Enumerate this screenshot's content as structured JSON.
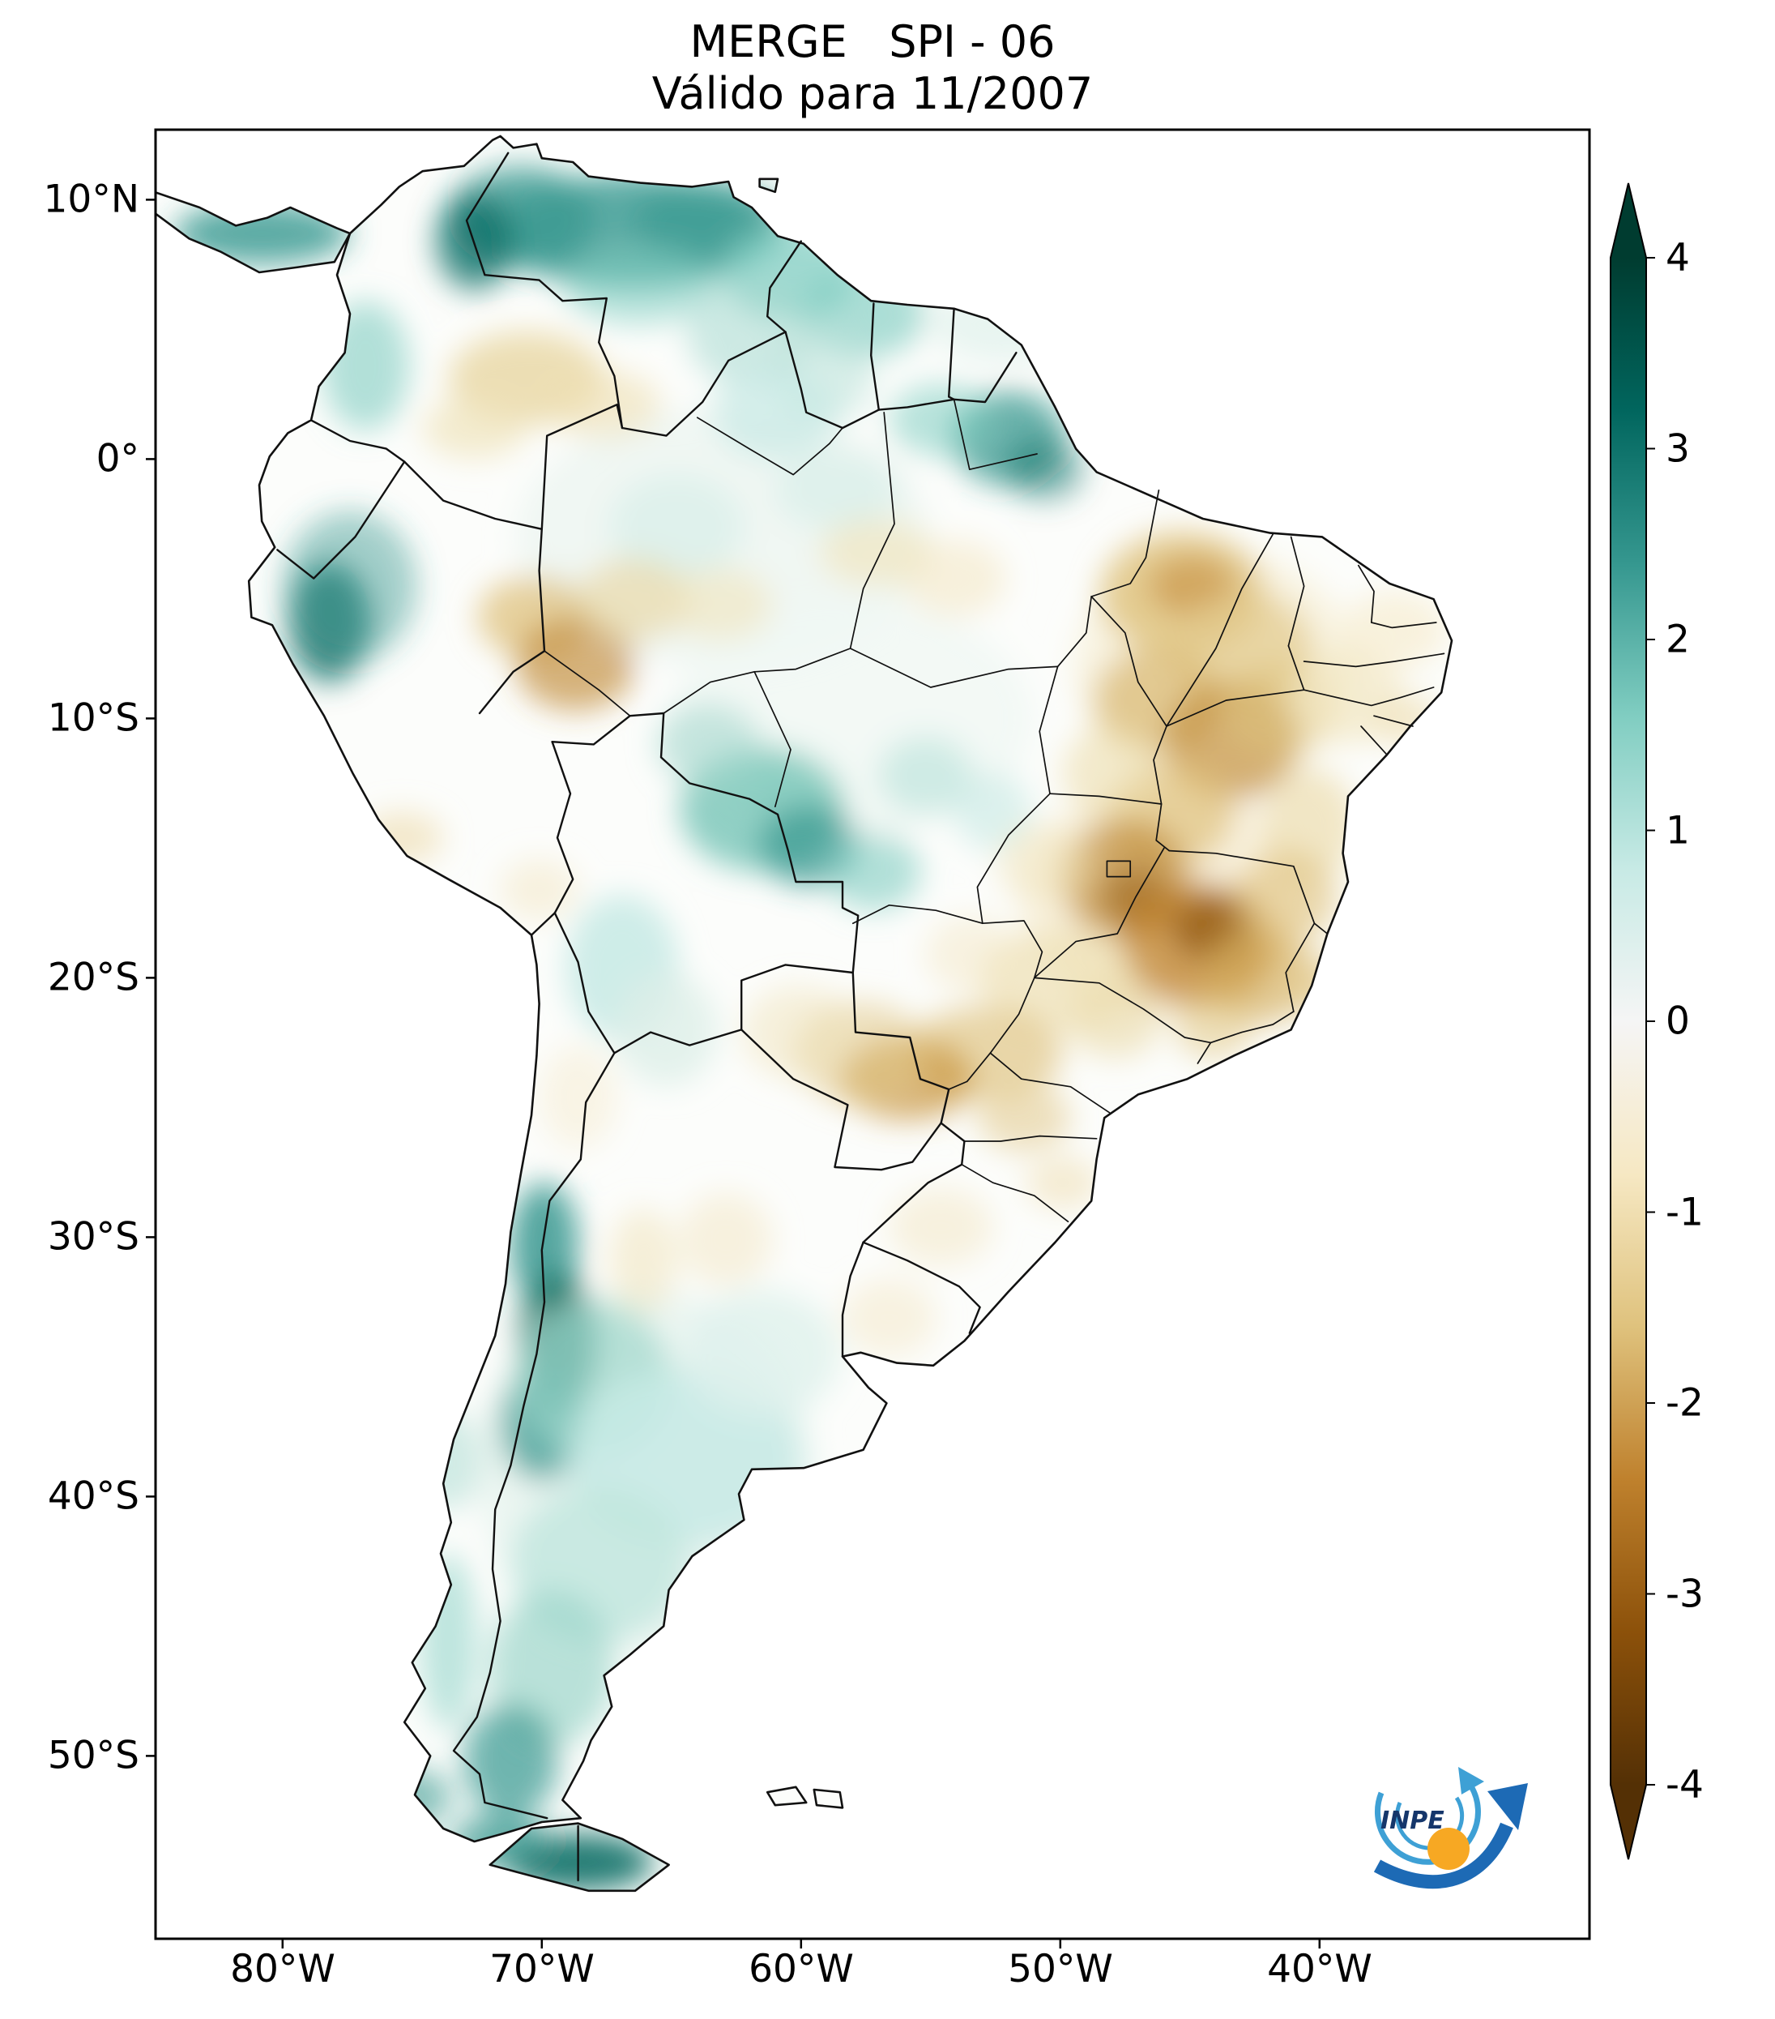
{
  "figure": {
    "title": "MERGE   SPI - 06",
    "subtitle": "Válido para 11/2007"
  },
  "axes": {
    "lat_ticks": [
      "10°N",
      "0°",
      "10°S",
      "20°S",
      "30°S",
      "40°S",
      "50°S"
    ],
    "lon_ticks": [
      "80°W",
      "70°W",
      "60°W",
      "50°W",
      "40°W"
    ]
  },
  "colorbar": {
    "tick_labels": [
      "4",
      "3",
      "2",
      "1",
      "0",
      "-1",
      "-2",
      "-3",
      "-4"
    ],
    "max": 4,
    "min": -4,
    "palette_name": "BrBG",
    "palette_top_to_bottom": [
      "#003c30",
      "#01665e",
      "#35978f",
      "#80cdc1",
      "#c7eae5",
      "#f5f5f5",
      "#f6e8c3",
      "#dfc27d",
      "#bf812d",
      "#8c510a",
      "#543005"
    ]
  },
  "logo": {
    "label": "INPE",
    "colors": {
      "swirl": "#3ea0d5",
      "arrow": "#1d6ab5",
      "dot": "#f7a823",
      "text": "#15366b"
    }
  },
  "chart_data": {
    "type": "heatmap",
    "title": "MERGE   SPI - 06",
    "subtitle": "Válido para 11/2007",
    "product": "MERGE",
    "index": "SPI-06",
    "valid_for": "11/2007",
    "region": "South America",
    "x_ticks": [
      "80°W",
      "70°W",
      "60°W",
      "50°W",
      "40°W"
    ],
    "y_ticks": [
      "10°N",
      "0°",
      "10°S",
      "20°S",
      "30°S",
      "40°S",
      "50°S"
    ],
    "colorbar": {
      "min": -4,
      "max": 4,
      "ticks": [
        4,
        3,
        2,
        1,
        0,
        -1,
        -2,
        -3,
        -4
      ],
      "colormap": "BrBG",
      "extend": "both"
    },
    "wet_anomaly_regions": [
      "northern Venezuela and Caribbean coast (SPI ≈ +2 to +3)",
      "Guyana / Suriname coast",
      "Amapá and Amazon river mouth",
      "Peruvian Andes (SPI ≈ +2)",
      "Rondônia / eastern Bolivia lowlands",
      "Argentine Andes around 30°S–37°S (SPI ≈ +2 to +3)",
      "central Argentina and Patagonia (SPI ≈ +1)",
      "Tierra del Fuego (SPI ≈ +2 to +3)"
    ],
    "dry_anomaly_regions": [
      "southwestern Amazon (SPI ≈ -2)",
      "Maranhão / Piauí (SPI ≈ -1 to -2)",
      "western Bahia (SPI ≈ -2)",
      "Goiás and Distrito Federal (SPI ≈ -2)",
      "Minas Gerais - strongest deficit (SPI ≈ -3)",
      "eastern Paraguay / São Paulo / Mato Grosso do Sul (SPI ≈ -1 to -2)",
      "interior Colombia–Venezuela border (SPI ≈ -1)"
    ]
  }
}
